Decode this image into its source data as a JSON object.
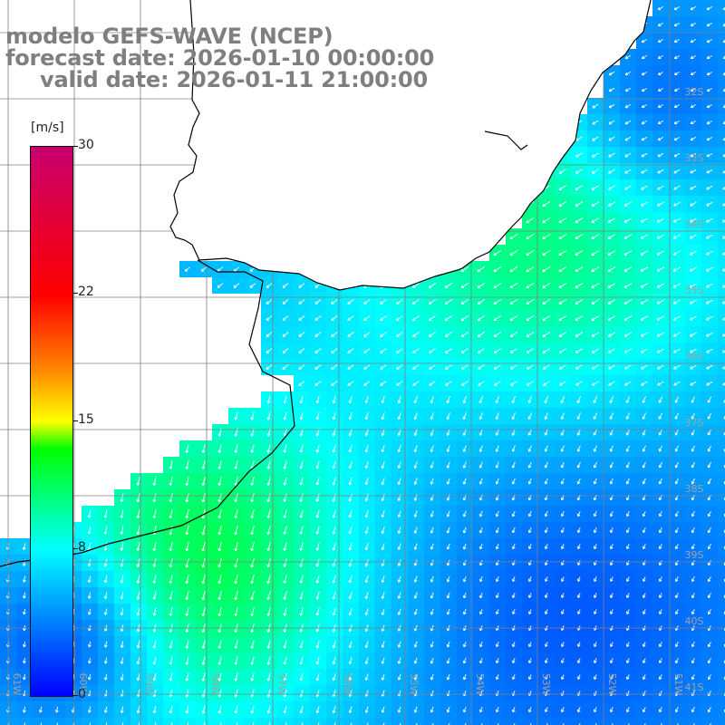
{
  "title": {
    "model": "modelo GEFS-WAVE (NCEP)",
    "forecast": "forecast date: 2026-01-10 00:00:00",
    "valid": "valid date: 2026-01-11 21:00:00"
  },
  "colorbar": {
    "unit": "[m/s]",
    "ticks": [
      {
        "label": "30",
        "value": 30
      },
      {
        "label": "22",
        "value": 22
      },
      {
        "label": "15",
        "value": 15
      },
      {
        "label": "8",
        "value": 8
      },
      {
        "label": "0",
        "value": 0
      }
    ]
  },
  "map": {
    "lat_labels": [
      "32S",
      "33S",
      "34S",
      "35S",
      "36S",
      "37S",
      "38S",
      "39S",
      "40S",
      "41S"
    ],
    "lon_labels": [
      "61W",
      "60W",
      "59W",
      "58W",
      "57W",
      "56W",
      "55W",
      "54W",
      "53W",
      "52W",
      "51W"
    ]
  },
  "colors": {
    "land": "#ffffff",
    "grid": "#808080",
    "coast": "#000000",
    "arrows": "#ffffff",
    "title": "#7f7f7f"
  }
}
